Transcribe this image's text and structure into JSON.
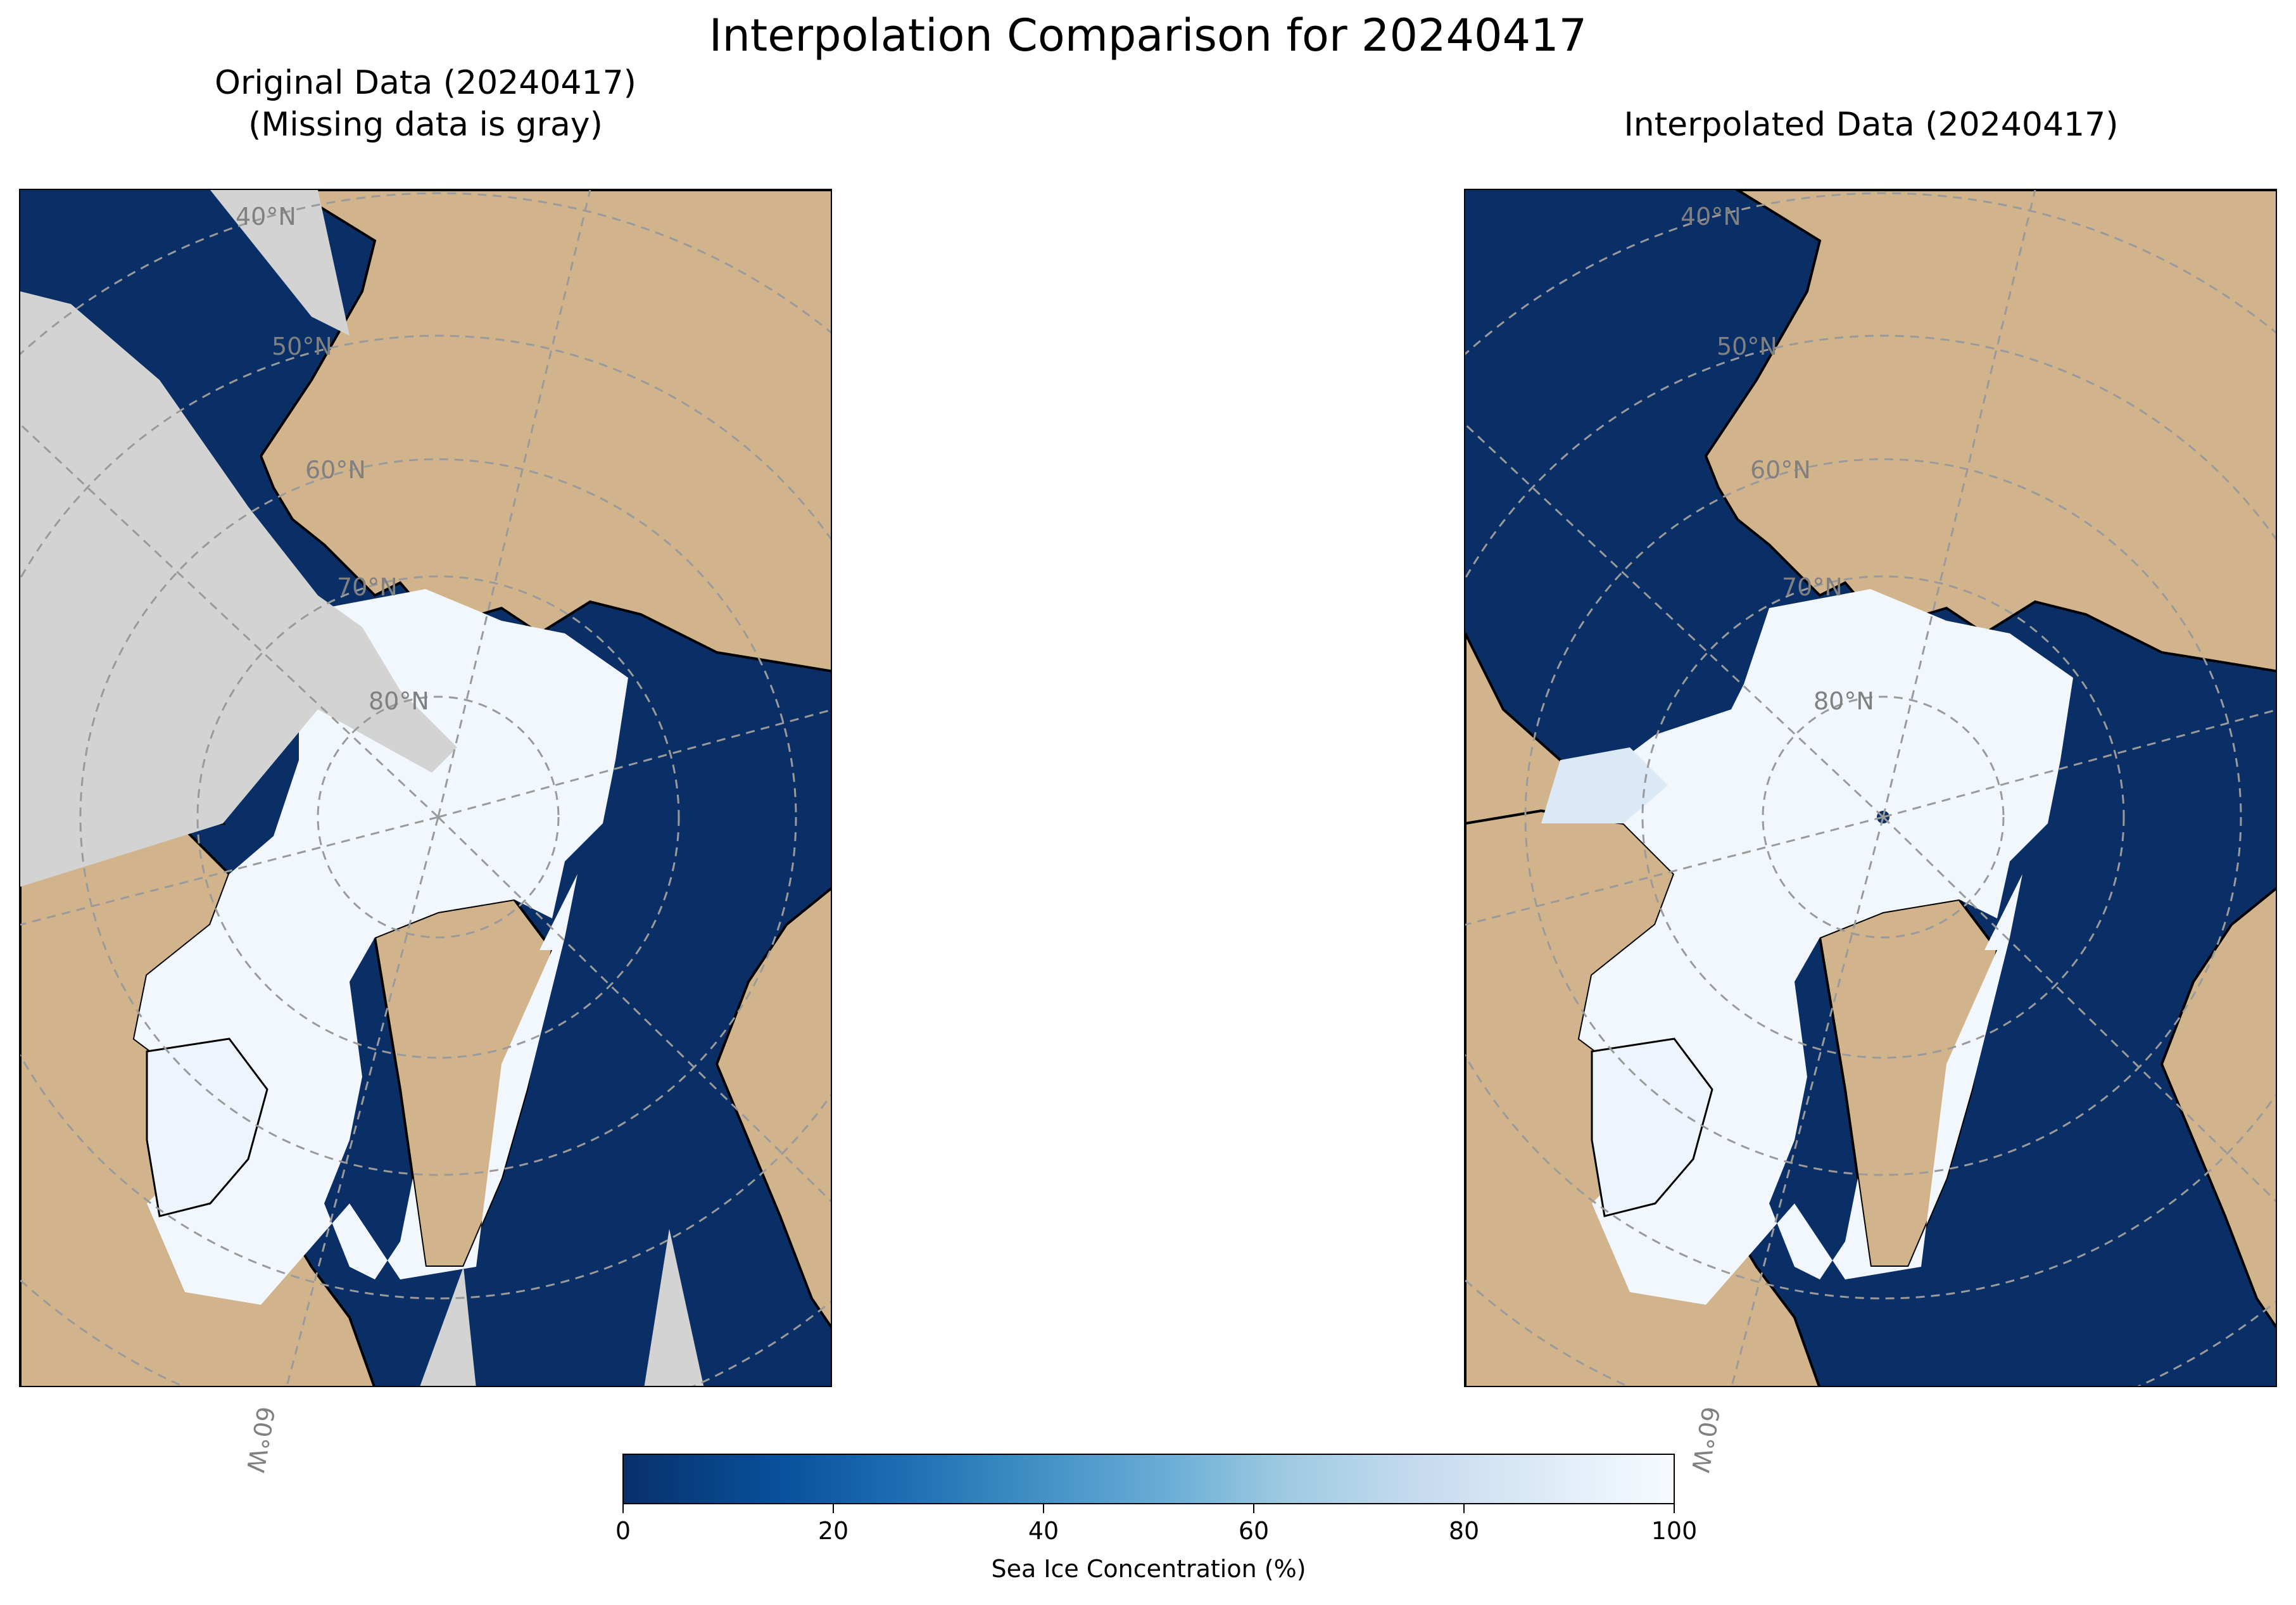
{
  "title": "Interpolation Comparison for 20240417",
  "panels": [
    {
      "title": "Original Data (20240417)\n(Missing data is gray)",
      "missing_color": "#d3d3d3"
    },
    {
      "title": "Interpolated Data (20240417)"
    }
  ],
  "gridlines": {
    "latitude_labels": [
      "40°N",
      "50°N",
      "60°N",
      "70°N",
      "80°N"
    ],
    "longitude_label": "60°W"
  },
  "colors": {
    "ocean_low_ice": "#08306b",
    "high_ice": "#f7fbff",
    "land": "#d2b48c",
    "missing": "#d3d3d3",
    "gridline": "#808080"
  },
  "colorbar": {
    "ticks": [
      "0",
      "20",
      "40",
      "60",
      "80",
      "100"
    ],
    "label": "Sea Ice Concentration (%)",
    "colormap": "Blues_r",
    "range": [
      0,
      100
    ]
  }
}
